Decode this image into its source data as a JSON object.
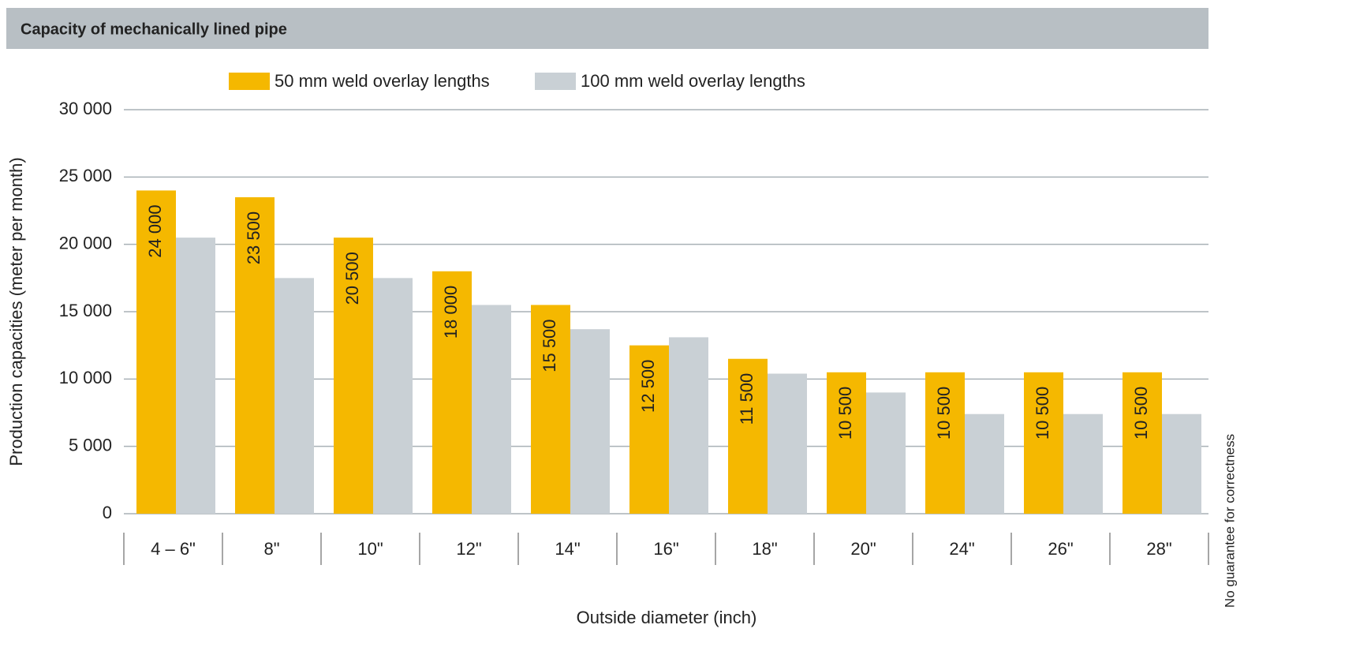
{
  "chart_data": {
    "type": "bar",
    "title": "Capacity of mechanically lined pipe",
    "x_label": "Outside diameter (inch)",
    "y_label": "Production capacities (meter per month)",
    "note": "No guarantee for correctness",
    "categories": [
      "4 – 6\"",
      "8\"",
      "10\"",
      "12\"",
      "14\"",
      "16\"",
      "18\"",
      "20\"",
      "24\"",
      "26\"",
      "28\""
    ],
    "series": [
      {
        "name": "50 mm weld overlay lengths",
        "color": "#f5b800",
        "values": [
          24000,
          23500,
          20500,
          18000,
          15500,
          12500,
          11500,
          10500,
          10500,
          10500,
          10500
        ],
        "value_labels": [
          "24 000",
          "23 500",
          "20 500",
          "18 000",
          "15 500",
          "12 500",
          "11 500",
          "10 500",
          "10 500",
          "10 500",
          "10 500"
        ]
      },
      {
        "name": "100 mm weld overlay lengths",
        "color": "#c9d0d5",
        "values": [
          20500,
          17500,
          17500,
          15500,
          13700,
          13100,
          10400,
          9000,
          7400,
          7400,
          7400
        ]
      }
    ],
    "ylim": [
      0,
      30000
    ],
    "yticks": [
      0,
      {
        "value": 5000,
        "label": "5 000"
      },
      {
        "value": 10000,
        "label": "10 000"
      },
      {
        "value": 15000,
        "label": "15 000"
      },
      {
        "value": 20000,
        "label": "20 000"
      },
      {
        "value": 25000,
        "label": "25 000"
      },
      {
        "value": 30000,
        "label": "30 000"
      }
    ],
    "grid": true
  }
}
